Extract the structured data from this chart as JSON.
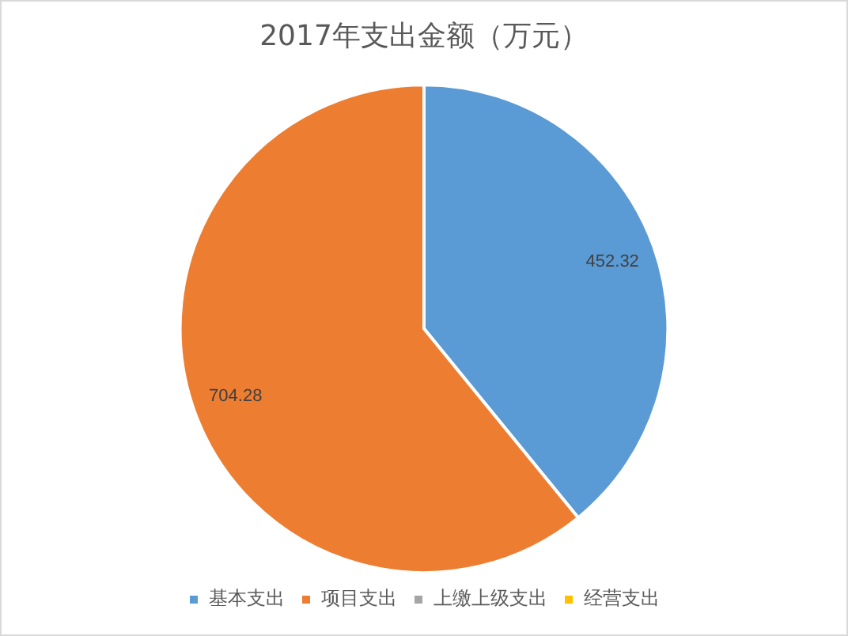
{
  "chart_data": {
    "type": "pie",
    "title": "2017年支出金额（万元）",
    "categories": [
      "基本支出",
      "项目支出",
      "上缴上级支出",
      "经营支出"
    ],
    "values": [
      452.32,
      704.28,
      0,
      0
    ],
    "colors": [
      "#5b9bd5",
      "#ed7d31",
      "#a5a5a5",
      "#ffc000"
    ],
    "value_labels": [
      "452.32",
      "704.28",
      null,
      null
    ],
    "legend": "bottom"
  }
}
